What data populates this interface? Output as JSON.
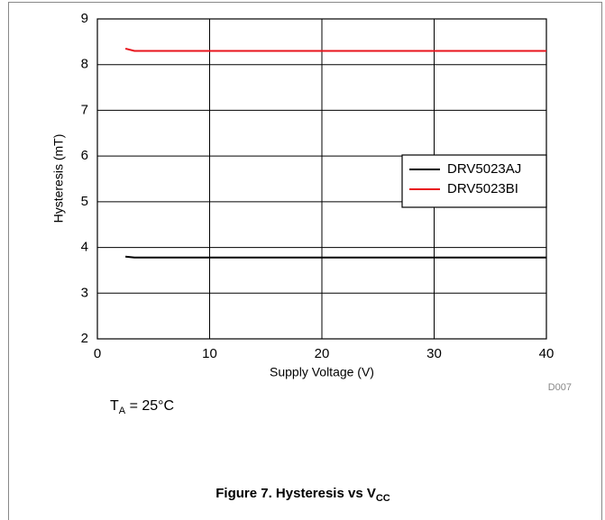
{
  "chart_data": {
    "type": "line",
    "x": [
      2.5,
      3.3,
      40
    ],
    "series": [
      {
        "name": "DRV5023AJ",
        "color": "#000000",
        "values": [
          3.8,
          3.78,
          3.78
        ]
      },
      {
        "name": "DRV5023BI",
        "color": "#e8141c",
        "values": [
          8.35,
          8.3,
          8.3
        ]
      }
    ],
    "xlim": [
      0,
      40
    ],
    "xticks": [
      0,
      10,
      20,
      30,
      40
    ],
    "ylim": [
      2,
      9
    ],
    "yticks": [
      2,
      3,
      4,
      5,
      6,
      7,
      8,
      9
    ],
    "xlabel": "Supply Voltage (V)",
    "ylabel": "Hysteresis (mT)",
    "grid": true,
    "legend": "right",
    "code": "D007",
    "annotation": {
      "main": "T",
      "sub": "A",
      "rest": " = 25°C"
    },
    "caption": {
      "main": "Figure 7. Hysteresis vs V",
      "sub": "CC"
    }
  }
}
